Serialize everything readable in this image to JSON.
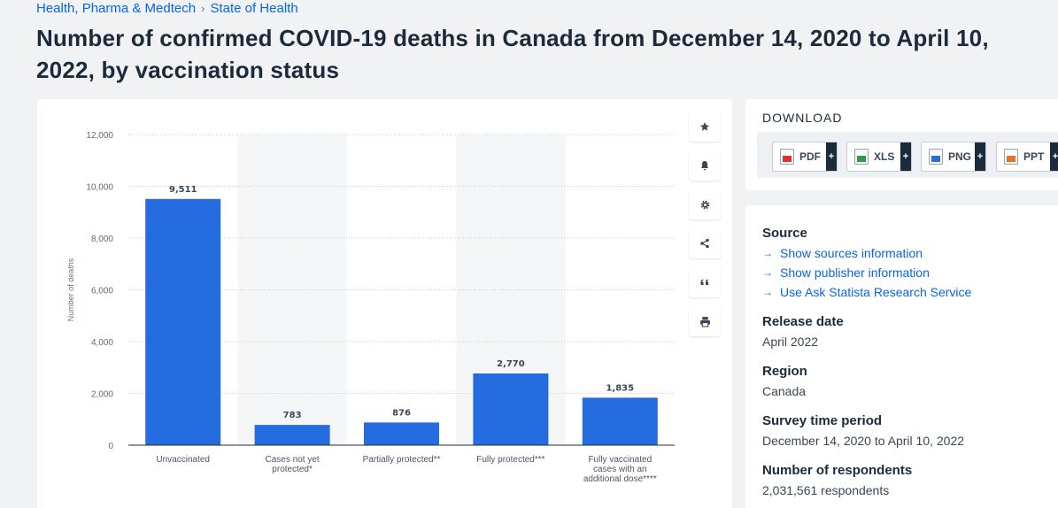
{
  "breadcrumb": {
    "parent": "Health, Pharma & Medtech",
    "separator": "›",
    "current": "State of Health"
  },
  "page_title": "Number of confirmed COVID-19 deaths in Canada from December 14, 2020 to April 10, 2022, by vaccination status",
  "toolbar": {
    "icons": [
      "star-icon",
      "bell-icon",
      "gear-icon",
      "share-icon",
      "quote-icon",
      "print-icon"
    ]
  },
  "download": {
    "title": "DOWNLOAD",
    "buttons": [
      {
        "label": "PDF",
        "plus": "+",
        "color": "#d9342b"
      },
      {
        "label": "XLS",
        "plus": "+",
        "color": "#2f9a45"
      },
      {
        "label": "PNG",
        "plus": "+",
        "color": "#2a6fc9"
      },
      {
        "label": "PPT",
        "plus": "+",
        "color": "#e8722a"
      }
    ]
  },
  "info": {
    "source_heading": "Source",
    "links": [
      "Show sources information",
      "Show publisher information",
      "Use Ask Statista Research Service"
    ],
    "release_heading": "Release date",
    "release_value": "April 2022",
    "region_heading": "Region",
    "region_value": "Canada",
    "period_heading": "Survey time period",
    "period_value": "December 14, 2020 to April 10, 2022",
    "respondents_heading": "Number of respondents",
    "respondents_value": "2,031,561 respondents"
  },
  "chart_data": {
    "type": "bar",
    "categories": [
      [
        "Unvaccinated"
      ],
      [
        "Cases not yet",
        "protected*"
      ],
      [
        "Partially protected**"
      ],
      [
        "Fully protected***"
      ],
      [
        "Fully vaccinated",
        "cases with an",
        "additional dose****"
      ]
    ],
    "values": [
      9511,
      783,
      876,
      2770,
      1835
    ],
    "value_labels": [
      "9,511",
      "783",
      "876",
      "2,770",
      "1,835"
    ],
    "ylabel": "Number of deaths",
    "ylim": [
      0,
      12000
    ],
    "yticks": [
      0,
      2000,
      4000,
      6000,
      8000,
      10000,
      12000
    ],
    "ytick_labels": [
      "0",
      "2,000",
      "4,000",
      "6,000",
      "8,000",
      "10,000",
      "12,000"
    ],
    "bar_color": "#246ce0",
    "band_color": "#f5f6f7",
    "grid": true
  }
}
